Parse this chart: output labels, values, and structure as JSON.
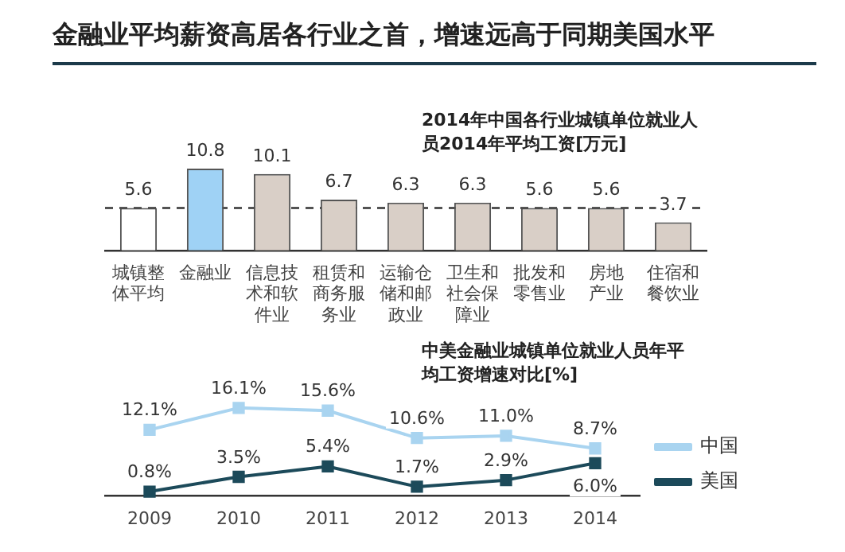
{
  "chart_data": [
    {
      "type": "bar",
      "title": "金融业平均薪资高居各行业之首，增速远高于同期美国水平",
      "subtitle": "2014年中国各行业城镇单位就业人员2014年平均工资[万元]",
      "categories": [
        "城镇整体平均",
        "金融业",
        "信息技术和软件业",
        "租赁和商务服务业",
        "运输仓储和邮政业",
        "卫生和社会保障业",
        "批发和零售业",
        "房地产业",
        "住宿和餐饮业"
      ],
      "values": [
        5.6,
        10.8,
        10.1,
        6.7,
        6.3,
        6.3,
        5.6,
        5.6,
        3.7
      ],
      "colors": [
        "#ffffff",
        "#9fd2f5",
        "#d9cfc7",
        "#d9cfc7",
        "#d9cfc7",
        "#d9cfc7",
        "#d9cfc7",
        "#d9cfc7",
        "#d9cfc7"
      ],
      "data_labels": true,
      "ref_lines": [
        {
          "axis": "y",
          "value": 5.6,
          "color": "#333333",
          "line_style": "dashed"
        }
      ]
    },
    {
      "type": "line",
      "title": "中美金融业城镇单位就业人员年平均工资增速对比[%]",
      "categories": [
        "2009",
        "2010",
        "2011",
        "2012",
        "2013",
        "2014"
      ],
      "series": [
        {
          "name": "中国",
          "color": "#a9d4f0",
          "values": [
            12.1,
            16.1,
            15.6,
            10.6,
            11.0,
            8.7
          ],
          "value_labels": [
            "12.1%",
            "16.1%",
            "15.6%",
            "10.6%",
            "11.0%",
            "8.7%"
          ]
        },
        {
          "name": "美国",
          "color": "#1c4a5a",
          "values": [
            0.8,
            3.5,
            5.4,
            1.7,
            2.9,
            6.0
          ],
          "value_labels": [
            "0.8%",
            "3.5%",
            "5.4%",
            "1.7%",
            "2.9%",
            "6.0%"
          ]
        }
      ],
      "marker": "square",
      "legend": "right"
    }
  ]
}
